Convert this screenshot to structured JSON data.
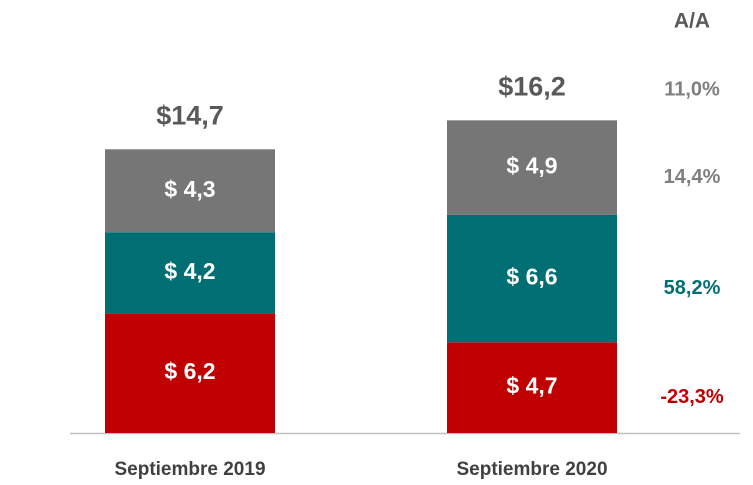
{
  "chart_data": {
    "type": "stacked_bar",
    "categories": [
      "Septiembre 2019",
      "Septiembre 2020"
    ],
    "series": [
      {
        "color": "#c00000",
        "values": [
          6.2,
          4.7
        ],
        "value_labels": [
          "$ 6,2",
          "$ 4,7"
        ],
        "change": -23.3,
        "change_label": "-23,3%"
      },
      {
        "color": "#006f73",
        "values": [
          4.2,
          6.6
        ],
        "value_labels": [
          "$ 4,2",
          "$ 6,6"
        ],
        "change": 58.2,
        "change_label": "58,2%"
      },
      {
        "color": "#767676",
        "values": [
          4.3,
          4.9
        ],
        "value_labels": [
          "$ 4,3",
          "$ 4,9"
        ],
        "change": 14.4,
        "change_label": "14,4%",
        "change_color": "#7f7f7f"
      }
    ],
    "totals": [
      14.7,
      16.2
    ],
    "total_labels": [
      "$14,7",
      "$16,2"
    ],
    "change_title": "A/A",
    "total_change": 11.0,
    "total_change_label": "11,0%",
    "total_change_color": "#7f7f7f"
  }
}
